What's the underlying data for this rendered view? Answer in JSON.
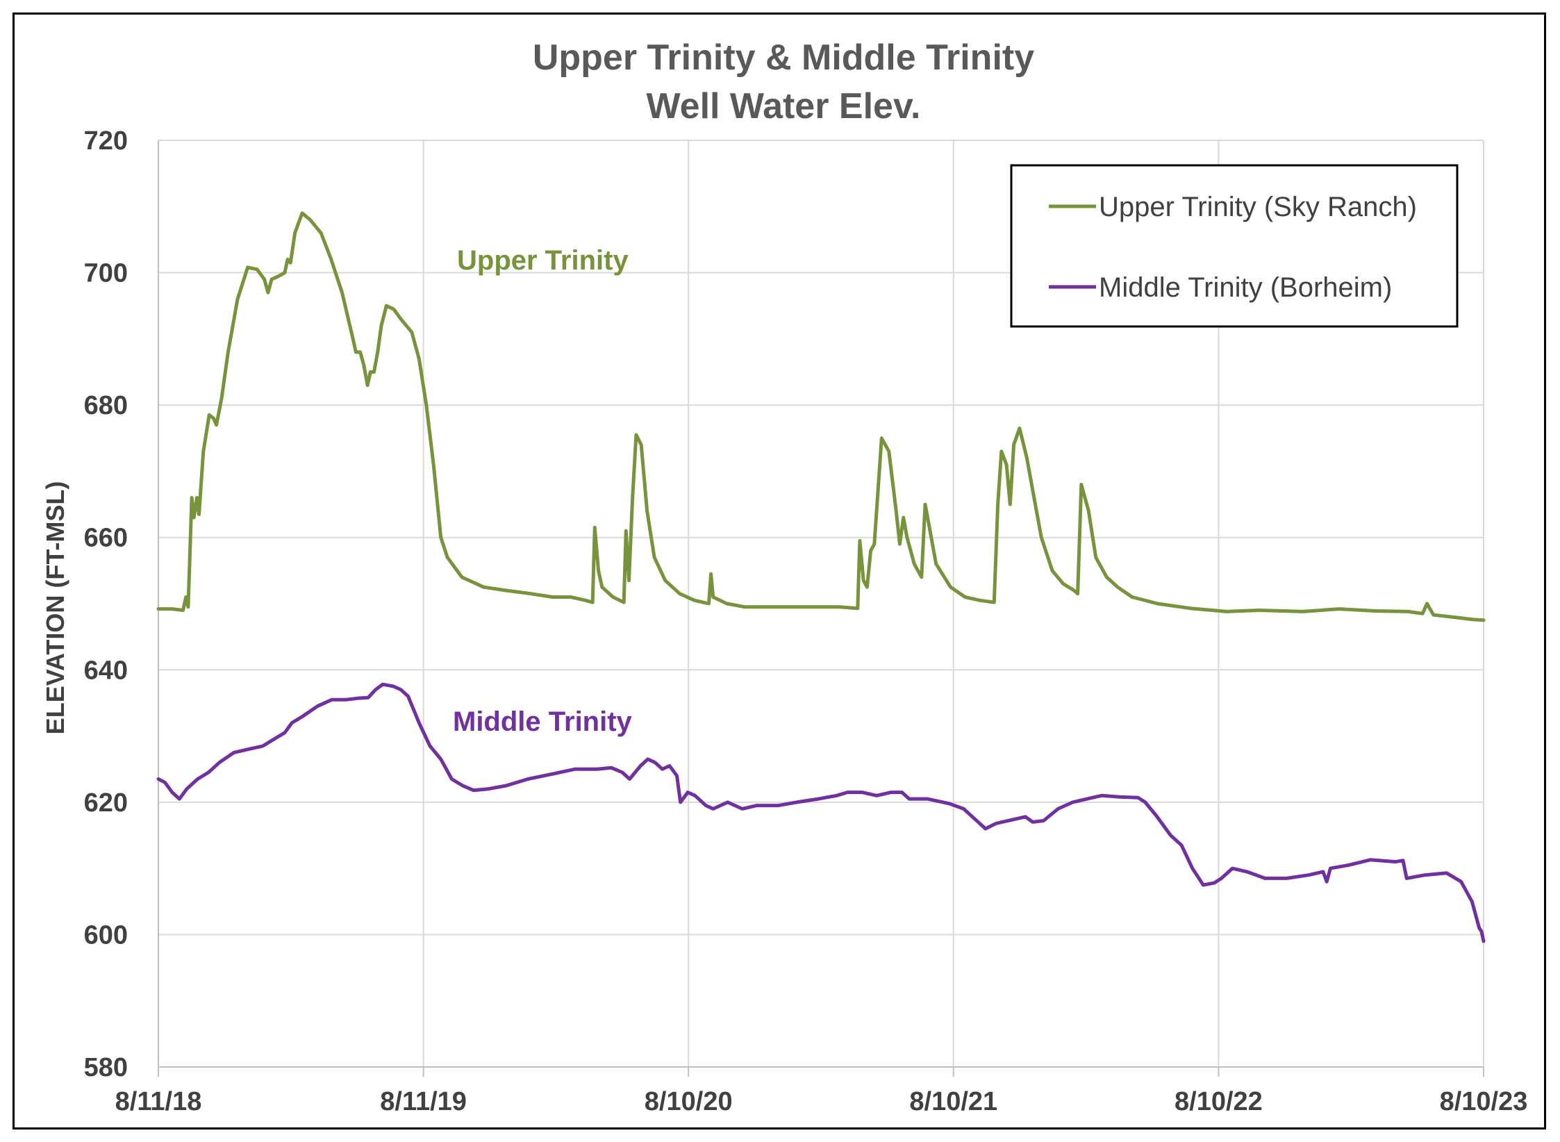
{
  "chart_data": {
    "type": "line",
    "title": "Upper Trinity & Middle Trinity",
    "subtitle": "Well Water Elev.",
    "ylabel": "ELEVATION (FT-MSL)",
    "xlabel": "",
    "ylim": [
      580,
      720
    ],
    "yticks": [
      580,
      600,
      620,
      640,
      660,
      680,
      700,
      720
    ],
    "xlim": [
      "2018-08-11",
      "2023-08-10"
    ],
    "xticks": [
      {
        "date": "2018-08-11",
        "label": "8/11/18"
      },
      {
        "date": "2019-08-11",
        "label": "8/11/19"
      },
      {
        "date": "2020-08-10",
        "label": "8/10/20"
      },
      {
        "date": "2021-08-10",
        "label": "8/10/21"
      },
      {
        "date": "2022-08-10",
        "label": "8/10/22"
      },
      {
        "date": "2023-08-10",
        "label": "8/10/23"
      }
    ],
    "grid": true,
    "legend_position": "top-right",
    "annotations": [
      {
        "text": "Upper Trinity",
        "series": 0
      },
      {
        "text": "Middle Trinity",
        "series": 1
      }
    ],
    "series": [
      {
        "name": "Upper Trinity (Sky Ranch)",
        "color": "#77933C",
        "points": [
          [
            "2018-08-11",
            649.2
          ],
          [
            "2018-08-30",
            649.2
          ],
          [
            "2018-09-14",
            649.0
          ],
          [
            "2018-09-18",
            651.0
          ],
          [
            "2018-09-21",
            649.5
          ],
          [
            "2018-09-26",
            666.0
          ],
          [
            "2018-09-29",
            663.0
          ],
          [
            "2018-10-03",
            666.0
          ],
          [
            "2018-10-06",
            663.5
          ],
          [
            "2018-10-12",
            673.0
          ],
          [
            "2018-10-20",
            678.5
          ],
          [
            "2018-10-26",
            678.0
          ],
          [
            "2018-10-30",
            677.0
          ],
          [
            "2018-11-06",
            681.0
          ],
          [
            "2018-11-15",
            688.0
          ],
          [
            "2018-11-28",
            696.0
          ],
          [
            "2018-12-12",
            700.8
          ],
          [
            "2018-12-25",
            700.5
          ],
          [
            "2019-01-04",
            699.0
          ],
          [
            "2019-01-09",
            697.0
          ],
          [
            "2019-01-14",
            699.0
          ],
          [
            "2019-01-24",
            699.5
          ],
          [
            "2019-02-01",
            700.0
          ],
          [
            "2019-02-05",
            702.0
          ],
          [
            "2019-02-09",
            701.5
          ],
          [
            "2019-02-15",
            706.0
          ],
          [
            "2019-02-25",
            709.0
          ],
          [
            "2019-03-08",
            708.0
          ],
          [
            "2019-03-23",
            706.0
          ],
          [
            "2019-04-06",
            702.0
          ],
          [
            "2019-04-21",
            697.0
          ],
          [
            "2019-05-06",
            690.0
          ],
          [
            "2019-05-10",
            688.0
          ],
          [
            "2019-05-16",
            688.0
          ],
          [
            "2019-05-21",
            686.0
          ],
          [
            "2019-05-26",
            683.0
          ],
          [
            "2019-05-30",
            685.0
          ],
          [
            "2019-06-04",
            685.0
          ],
          [
            "2019-06-09",
            688.0
          ],
          [
            "2019-06-14",
            692.0
          ],
          [
            "2019-06-21",
            695.0
          ],
          [
            "2019-07-01",
            694.5
          ],
          [
            "2019-07-11",
            693.0
          ],
          [
            "2019-07-26",
            691.0
          ],
          [
            "2019-08-05",
            687.0
          ],
          [
            "2019-08-15",
            680.0
          ],
          [
            "2019-08-25",
            671.0
          ],
          [
            "2019-09-04",
            660.0
          ],
          [
            "2019-09-13",
            657.0
          ],
          [
            "2019-10-03",
            654.0
          ],
          [
            "2019-11-02",
            652.5
          ],
          [
            "2019-12-02",
            652.0
          ],
          [
            "2020-01-06",
            651.5
          ],
          [
            "2020-02-05",
            651.0
          ],
          [
            "2020-03-01",
            651.0
          ],
          [
            "2020-03-21",
            650.5
          ],
          [
            "2020-03-31",
            650.2
          ],
          [
            "2020-04-03",
            661.5
          ],
          [
            "2020-04-08",
            655.0
          ],
          [
            "2020-04-13",
            652.5
          ],
          [
            "2020-04-28",
            651.0
          ],
          [
            "2020-05-13",
            650.2
          ],
          [
            "2020-05-16",
            661.0
          ],
          [
            "2020-05-20",
            653.5
          ],
          [
            "2020-05-25",
            666.0
          ],
          [
            "2020-05-30",
            675.5
          ],
          [
            "2020-06-06",
            674.0
          ],
          [
            "2020-06-14",
            664.0
          ],
          [
            "2020-06-24",
            657.0
          ],
          [
            "2020-07-09",
            653.5
          ],
          [
            "2020-07-29",
            651.5
          ],
          [
            "2020-08-18",
            650.5
          ],
          [
            "2020-09-07",
            650.0
          ],
          [
            "2020-09-10",
            654.5
          ],
          [
            "2020-09-13",
            651.0
          ],
          [
            "2020-10-02",
            650.0
          ],
          [
            "2020-10-27",
            649.5
          ],
          [
            "2020-11-26",
            649.5
          ],
          [
            "2021-01-05",
            649.5
          ],
          [
            "2021-02-09",
            649.5
          ],
          [
            "2021-03-06",
            649.5
          ],
          [
            "2021-03-31",
            649.3
          ],
          [
            "2021-04-03",
            659.5
          ],
          [
            "2021-04-08",
            653.5
          ],
          [
            "2021-04-13",
            652.5
          ],
          [
            "2021-04-18",
            658.0
          ],
          [
            "2021-04-23",
            659.0
          ],
          [
            "2021-05-03",
            675.0
          ],
          [
            "2021-05-13",
            673.0
          ],
          [
            "2021-05-23",
            664.0
          ],
          [
            "2021-05-28",
            659.0
          ],
          [
            "2021-06-02",
            663.0
          ],
          [
            "2021-06-07",
            660.0
          ],
          [
            "2021-06-17",
            656.0
          ],
          [
            "2021-06-27",
            654.0
          ],
          [
            "2021-07-02",
            665.0
          ],
          [
            "2021-07-07",
            662.0
          ],
          [
            "2021-07-17",
            656.0
          ],
          [
            "2021-08-06",
            652.5
          ],
          [
            "2021-08-26",
            651.0
          ],
          [
            "2021-09-15",
            650.5
          ],
          [
            "2021-10-05",
            650.2
          ],
          [
            "2021-10-10",
            665.0
          ],
          [
            "2021-10-15",
            673.0
          ],
          [
            "2021-10-22",
            671.0
          ],
          [
            "2021-10-27",
            665.0
          ],
          [
            "2021-11-01",
            674.0
          ],
          [
            "2021-11-09",
            676.5
          ],
          [
            "2021-11-19",
            672.0
          ],
          [
            "2021-11-29",
            666.0
          ],
          [
            "2021-12-09",
            660.0
          ],
          [
            "2021-12-24",
            655.0
          ],
          [
            "2022-01-08",
            653.0
          ],
          [
            "2022-01-23",
            652.0
          ],
          [
            "2022-01-28",
            651.5
          ],
          [
            "2022-02-02",
            668.0
          ],
          [
            "2022-02-12",
            664.0
          ],
          [
            "2022-02-22",
            657.0
          ],
          [
            "2022-03-09",
            654.0
          ],
          [
            "2022-03-24",
            652.5
          ],
          [
            "2022-04-13",
            651.0
          ],
          [
            "2022-05-18",
            650.0
          ],
          [
            "2022-07-02",
            649.3
          ],
          [
            "2022-08-21",
            648.8
          ],
          [
            "2022-10-05",
            649.0
          ],
          [
            "2022-12-04",
            648.8
          ],
          [
            "2023-01-23",
            649.2
          ],
          [
            "2023-03-14",
            648.9
          ],
          [
            "2023-04-28",
            648.8
          ],
          [
            "2023-05-18",
            648.5
          ],
          [
            "2023-05-24",
            650.0
          ],
          [
            "2023-06-02",
            648.3
          ],
          [
            "2023-06-27",
            648.0
          ],
          [
            "2023-07-27",
            647.6
          ],
          [
            "2023-08-10",
            647.5
          ]
        ]
      },
      {
        "name": "Middle Trinity (Borheim)",
        "color": "#7030A0",
        "points": [
          [
            "2018-08-11",
            623.5
          ],
          [
            "2018-08-20",
            623.0
          ],
          [
            "2018-08-30",
            621.5
          ],
          [
            "2018-09-09",
            620.5
          ],
          [
            "2018-09-19",
            622.0
          ],
          [
            "2018-10-04",
            623.5
          ],
          [
            "2018-10-19",
            624.5
          ],
          [
            "2018-11-03",
            626.0
          ],
          [
            "2018-11-23",
            627.5
          ],
          [
            "2018-12-13",
            628.0
          ],
          [
            "2019-01-02",
            628.5
          ],
          [
            "2019-01-17",
            629.5
          ],
          [
            "2019-02-01",
            630.5
          ],
          [
            "2019-02-11",
            632.0
          ],
          [
            "2019-02-26",
            633.0
          ],
          [
            "2019-03-18",
            634.5
          ],
          [
            "2019-04-07",
            635.5
          ],
          [
            "2019-04-27",
            635.5
          ],
          [
            "2019-05-12",
            635.7
          ],
          [
            "2019-05-27",
            635.8
          ],
          [
            "2019-06-06",
            637.0
          ],
          [
            "2019-06-16",
            637.8
          ],
          [
            "2019-07-01",
            637.5
          ],
          [
            "2019-07-11",
            637.0
          ],
          [
            "2019-07-21",
            636.0
          ],
          [
            "2019-08-05",
            632.0
          ],
          [
            "2019-08-20",
            628.5
          ],
          [
            "2019-09-04",
            626.5
          ],
          [
            "2019-09-19",
            623.5
          ],
          [
            "2019-10-04",
            622.5
          ],
          [
            "2019-10-19",
            621.8
          ],
          [
            "2019-11-08",
            622.0
          ],
          [
            "2019-12-03",
            622.5
          ],
          [
            "2020-01-02",
            623.5
          ],
          [
            "2020-02-06",
            624.3
          ],
          [
            "2020-03-07",
            625.0
          ],
          [
            "2020-04-06",
            625.0
          ],
          [
            "2020-04-26",
            625.2
          ],
          [
            "2020-05-11",
            624.5
          ],
          [
            "2020-05-21",
            623.5
          ],
          [
            "2020-06-05",
            625.5
          ],
          [
            "2020-06-15",
            626.5
          ],
          [
            "2020-06-25",
            626.0
          ],
          [
            "2020-07-05",
            625.0
          ],
          [
            "2020-07-15",
            625.5
          ],
          [
            "2020-07-25",
            624.0
          ],
          [
            "2020-07-30",
            620.0
          ],
          [
            "2020-08-09",
            621.5
          ],
          [
            "2020-08-19",
            621.0
          ],
          [
            "2020-09-03",
            619.5
          ],
          [
            "2020-09-13",
            619.0
          ],
          [
            "2020-10-03",
            620.0
          ],
          [
            "2020-10-23",
            619.0
          ],
          [
            "2020-11-12",
            619.5
          ],
          [
            "2020-12-12",
            619.5
          ],
          [
            "2021-01-06",
            620.0
          ],
          [
            "2021-02-05",
            620.5
          ],
          [
            "2021-03-02",
            621.0
          ],
          [
            "2021-03-17",
            621.5
          ],
          [
            "2021-04-06",
            621.5
          ],
          [
            "2021-04-26",
            621.0
          ],
          [
            "2021-05-16",
            621.5
          ],
          [
            "2021-05-31",
            621.5
          ],
          [
            "2021-06-10",
            620.5
          ],
          [
            "2021-07-05",
            620.5
          ],
          [
            "2021-08-04",
            619.8
          ],
          [
            "2021-08-24",
            619.0
          ],
          [
            "2021-09-08",
            617.5
          ],
          [
            "2021-09-23",
            616.0
          ],
          [
            "2021-10-08",
            616.8
          ],
          [
            "2021-10-28",
            617.3
          ],
          [
            "2021-11-17",
            617.8
          ],
          [
            "2021-11-27",
            617.0
          ],
          [
            "2021-12-12",
            617.2
          ],
          [
            "2022-01-01",
            619.0
          ],
          [
            "2022-01-21",
            620.0
          ],
          [
            "2022-02-10",
            620.5
          ],
          [
            "2022-03-02",
            621.0
          ],
          [
            "2022-03-27",
            620.8
          ],
          [
            "2022-04-21",
            620.7
          ],
          [
            "2022-05-01",
            620.0
          ],
          [
            "2022-05-16",
            618.0
          ],
          [
            "2022-06-05",
            615.0
          ],
          [
            "2022-06-20",
            613.5
          ],
          [
            "2022-07-05",
            610.0
          ],
          [
            "2022-07-20",
            607.5
          ],
          [
            "2022-08-04",
            607.8
          ],
          [
            "2022-08-14",
            608.5
          ],
          [
            "2022-08-29",
            610.0
          ],
          [
            "2022-09-18",
            609.5
          ],
          [
            "2022-10-13",
            608.5
          ],
          [
            "2022-11-12",
            608.5
          ],
          [
            "2022-12-12",
            609.0
          ],
          [
            "2023-01-01",
            609.5
          ],
          [
            "2023-01-06",
            608.0
          ],
          [
            "2023-01-11",
            610.0
          ],
          [
            "2023-02-05",
            610.5
          ],
          [
            "2023-03-07",
            611.3
          ],
          [
            "2023-04-11",
            611.0
          ],
          [
            "2023-04-21",
            611.2
          ],
          [
            "2023-04-26",
            608.5
          ],
          [
            "2023-05-21",
            609.0
          ],
          [
            "2023-06-20",
            609.3
          ],
          [
            "2023-07-10",
            608.0
          ],
          [
            "2023-07-25",
            605.0
          ],
          [
            "2023-08-04",
            601.0
          ],
          [
            "2023-08-07",
            600.5
          ],
          [
            "2023-08-10",
            599.0
          ]
        ]
      }
    ]
  }
}
